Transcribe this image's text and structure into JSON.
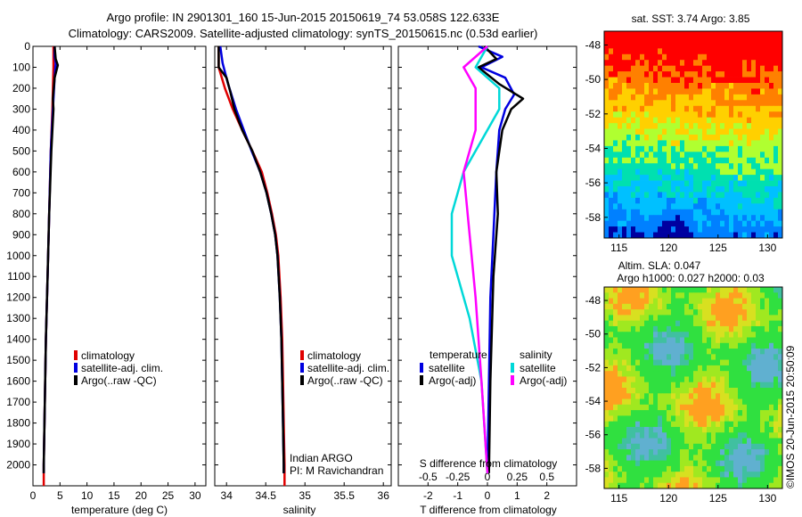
{
  "header": {
    "line1": "Argo profile: IN 2901301_160 15-Jun-2015 20150619_74 53.058S 122.633E",
    "line2": "Climatology: CARS2009. Satellite-adjusted climatology: synTS_20150615.nc (0.53d earlier)"
  },
  "chart_data": [
    {
      "type": "line",
      "panel": "temperature",
      "xlabel": "temperature (deg C)",
      "xlim": [
        0,
        32
      ],
      "xticks": [
        0,
        5,
        10,
        15,
        20,
        25,
        30
      ],
      "ylim": [
        0,
        2100
      ],
      "yticks": [
        0,
        100,
        200,
        300,
        400,
        500,
        600,
        700,
        800,
        900,
        1000,
        1100,
        1200,
        1300,
        1400,
        1500,
        1600,
        1700,
        1800,
        1900,
        2000
      ],
      "legend": [
        "climatology",
        "satellite-adj. clim.",
        "Argo(..raw -QC)"
      ],
      "series": [
        {
          "name": "climatology",
          "color": "#e00000",
          "points": [
            [
              3.8,
              0
            ],
            [
              3.8,
              100
            ],
            [
              3.6,
              300
            ],
            [
              3.3,
              500
            ],
            [
              3.0,
              800
            ],
            [
              2.7,
              1100
            ],
            [
              2.4,
              1400
            ],
            [
              2.2,
              1700
            ],
            [
              2.0,
              2000
            ],
            [
              2.0,
              2100
            ]
          ]
        },
        {
          "name": "satellite-adj. clim.",
          "color": "#0000e0",
          "points": [
            [
              4.0,
              0
            ],
            [
              4.0,
              50
            ],
            [
              4.2,
              80
            ],
            [
              4.0,
              150
            ],
            [
              3.8,
              250
            ],
            [
              3.6,
              350
            ],
            [
              3.3,
              500
            ],
            [
              3.0,
              800
            ],
            [
              2.7,
              1100
            ],
            [
              2.4,
              1400
            ],
            [
              2.2,
              1700
            ],
            [
              2.0,
              2000
            ],
            [
              2.0,
              2040
            ]
          ]
        },
        {
          "name": "Argo(..raw -QC)",
          "color": "#000000",
          "points": [
            [
              4.0,
              0
            ],
            [
              4.2,
              60
            ],
            [
              4.6,
              90
            ],
            [
              4.0,
              150
            ],
            [
              3.7,
              250
            ],
            [
              3.8,
              300
            ],
            [
              3.4,
              500
            ],
            [
              3.0,
              800
            ],
            [
              2.7,
              1100
            ],
            [
              2.4,
              1400
            ],
            [
              2.2,
              1700
            ],
            [
              2.0,
              2000
            ],
            [
              2.0,
              2040
            ]
          ]
        }
      ]
    },
    {
      "type": "line",
      "panel": "salinity",
      "xlabel": "salinity",
      "xlim": [
        33.85,
        36.1
      ],
      "xticks": [
        34,
        34.5,
        35,
        35.5,
        36
      ],
      "ylim": [
        0,
        2100
      ],
      "legend": [
        "climatology",
        "satellite-adj. clim.",
        "Argo(..raw -QC)"
      ],
      "annotation": [
        "Indian ARGO",
        "PI: M Ravichandran"
      ],
      "series": [
        {
          "name": "climatology",
          "color": "#e00000",
          "points": [
            [
              33.9,
              0
            ],
            [
              33.9,
              100
            ],
            [
              33.98,
              200
            ],
            [
              34.08,
              300
            ],
            [
              34.2,
              400
            ],
            [
              34.33,
              500
            ],
            [
              34.45,
              600
            ],
            [
              34.52,
              700
            ],
            [
              34.58,
              800
            ],
            [
              34.63,
              900
            ],
            [
              34.66,
              1000
            ],
            [
              34.69,
              1200
            ],
            [
              34.71,
              1400
            ],
            [
              34.72,
              1600
            ],
            [
              34.73,
              1800
            ],
            [
              34.74,
              2000
            ],
            [
              34.74,
              2100
            ]
          ]
        },
        {
          "name": "satellite-adj. clim.",
          "color": "#0000e0",
          "points": [
            [
              33.92,
              0
            ],
            [
              33.95,
              80
            ],
            [
              34.02,
              180
            ],
            [
              34.12,
              300
            ],
            [
              34.22,
              400
            ],
            [
              34.32,
              500
            ],
            [
              34.43,
              600
            ],
            [
              34.51,
              700
            ],
            [
              34.57,
              800
            ],
            [
              34.62,
              900
            ],
            [
              34.65,
              1000
            ],
            [
              34.68,
              1200
            ],
            [
              34.7,
              1400
            ],
            [
              34.71,
              1600
            ],
            [
              34.72,
              1800
            ],
            [
              34.73,
              2000
            ],
            [
              34.73,
              2040
            ]
          ]
        },
        {
          "name": "Argo(..raw -QC)",
          "color": "#000000",
          "points": [
            [
              33.9,
              0
            ],
            [
              33.9,
              100
            ],
            [
              34.0,
              150
            ],
            [
              34.05,
              220
            ],
            [
              34.1,
              300
            ],
            [
              34.2,
              400
            ],
            [
              34.33,
              500
            ],
            [
              34.43,
              600
            ],
            [
              34.51,
              700
            ],
            [
              34.57,
              800
            ],
            [
              34.62,
              900
            ],
            [
              34.65,
              1000
            ],
            [
              34.68,
              1200
            ],
            [
              34.7,
              1400
            ],
            [
              34.71,
              1600
            ],
            [
              34.72,
              1800
            ],
            [
              34.73,
              2000
            ],
            [
              34.73,
              2040
            ]
          ]
        }
      ]
    },
    {
      "type": "line",
      "panel": "difference",
      "xlabel": "T difference from climatology",
      "xlim": [
        -3,
        3
      ],
      "xticks": [
        -2,
        -1,
        0,
        1,
        2
      ],
      "xlabel_top": "S difference from climatology",
      "xticks_top": [
        -0.5,
        -0.25,
        0,
        0.25,
        0.5
      ],
      "xticklabels_top": [
        "-0.5",
        "-0.25",
        "0",
        "0.25",
        "0.5"
      ],
      "ylim": [
        0,
        2100
      ],
      "legend_titles": [
        "temperature",
        "salinity"
      ],
      "legend": [
        "satellite",
        "Argo(-adj)",
        "satellite",
        "Argo(-adj)"
      ],
      "series": [
        {
          "name": "satellite",
          "group": "temperature",
          "color": "#0000e0",
          "points": [
            [
              -0.3,
              0
            ],
            [
              0.5,
              50
            ],
            [
              -0.2,
              100
            ],
            [
              0.6,
              150
            ],
            [
              0.9,
              230
            ],
            [
              0.6,
              300
            ],
            [
              0.4,
              400
            ],
            [
              0.3,
              600
            ],
            [
              0.2,
              900
            ],
            [
              0.1,
              1200
            ],
            [
              0.05,
              1600
            ],
            [
              0.0,
              2040
            ]
          ]
        },
        {
          "name": "Argo(-adj)",
          "group": "temperature",
          "color": "#000000",
          "points": [
            [
              -0.1,
              0
            ],
            [
              0.3,
              60
            ],
            [
              -0.3,
              100
            ],
            [
              0.4,
              180
            ],
            [
              1.2,
              250
            ],
            [
              0.8,
              300
            ],
            [
              0.5,
              400
            ],
            [
              0.3,
              600
            ],
            [
              0.35,
              800
            ],
            [
              0.2,
              1100
            ],
            [
              0.1,
              1600
            ],
            [
              0.05,
              2040
            ]
          ]
        },
        {
          "name": "satellite",
          "group": "salinity",
          "color": "#00d8d8",
          "points": [
            [
              0.0,
              0
            ],
            [
              -0.1,
              100
            ],
            [
              0.1,
              200
            ],
            [
              0.1,
              300
            ],
            [
              0.0,
              400
            ],
            [
              -0.2,
              600
            ],
            [
              -0.3,
              800
            ],
            [
              -0.3,
              1000
            ],
            [
              -0.15,
              1300
            ],
            [
              -0.05,
              1600
            ],
            [
              0.0,
              2040
            ]
          ]
        },
        {
          "name": "Argo(-adj)",
          "group": "salinity",
          "color": "#ff00ff",
          "points": [
            [
              0.0,
              0
            ],
            [
              -0.2,
              100
            ],
            [
              -0.1,
              200
            ],
            [
              -0.1,
              300
            ],
            [
              -0.1,
              400
            ],
            [
              -0.2,
              600
            ],
            [
              -0.15,
              900
            ],
            [
              -0.1,
              1200
            ],
            [
              -0.05,
              1600
            ],
            [
              0.0,
              2040
            ]
          ]
        }
      ]
    },
    {
      "type": "heatmap",
      "panel": "sst-map",
      "title": "sat. SST: 3.74 Argo: 3.85",
      "xticks": [
        115,
        120,
        125,
        130
      ],
      "yticks": [
        -48,
        -50,
        -52,
        -54,
        -56,
        -58
      ],
      "xlim": [
        113.5,
        131.5
      ],
      "ylim": [
        -59.2,
        -47.2
      ],
      "colors": [
        "#ff0000",
        "#ff8000",
        "#ffd000",
        "#b0ff30",
        "#00e0b0",
        "#00c0ff",
        "#0080ff",
        "#0000a0"
      ]
    },
    {
      "type": "heatmap",
      "panel": "sla-map",
      "title_lines": [
        "Altim. SLA: 0.047",
        "Argo h1000: 0.027 h2000: 0.03"
      ],
      "xticks": [
        115,
        120,
        125,
        130
      ],
      "yticks": [
        -48,
        -50,
        -52,
        -54,
        -56,
        -58
      ],
      "xlim": [
        113.5,
        131.5
      ],
      "ylim": [
        -59.2,
        -47.2
      ],
      "colors": [
        "#30e040",
        "#a0e820",
        "#d8e020",
        "#ffa020",
        "#40c0a0",
        "#60b0d0"
      ]
    }
  ],
  "watermark": "©IMOS 20-Jun-2015 20:50:09"
}
